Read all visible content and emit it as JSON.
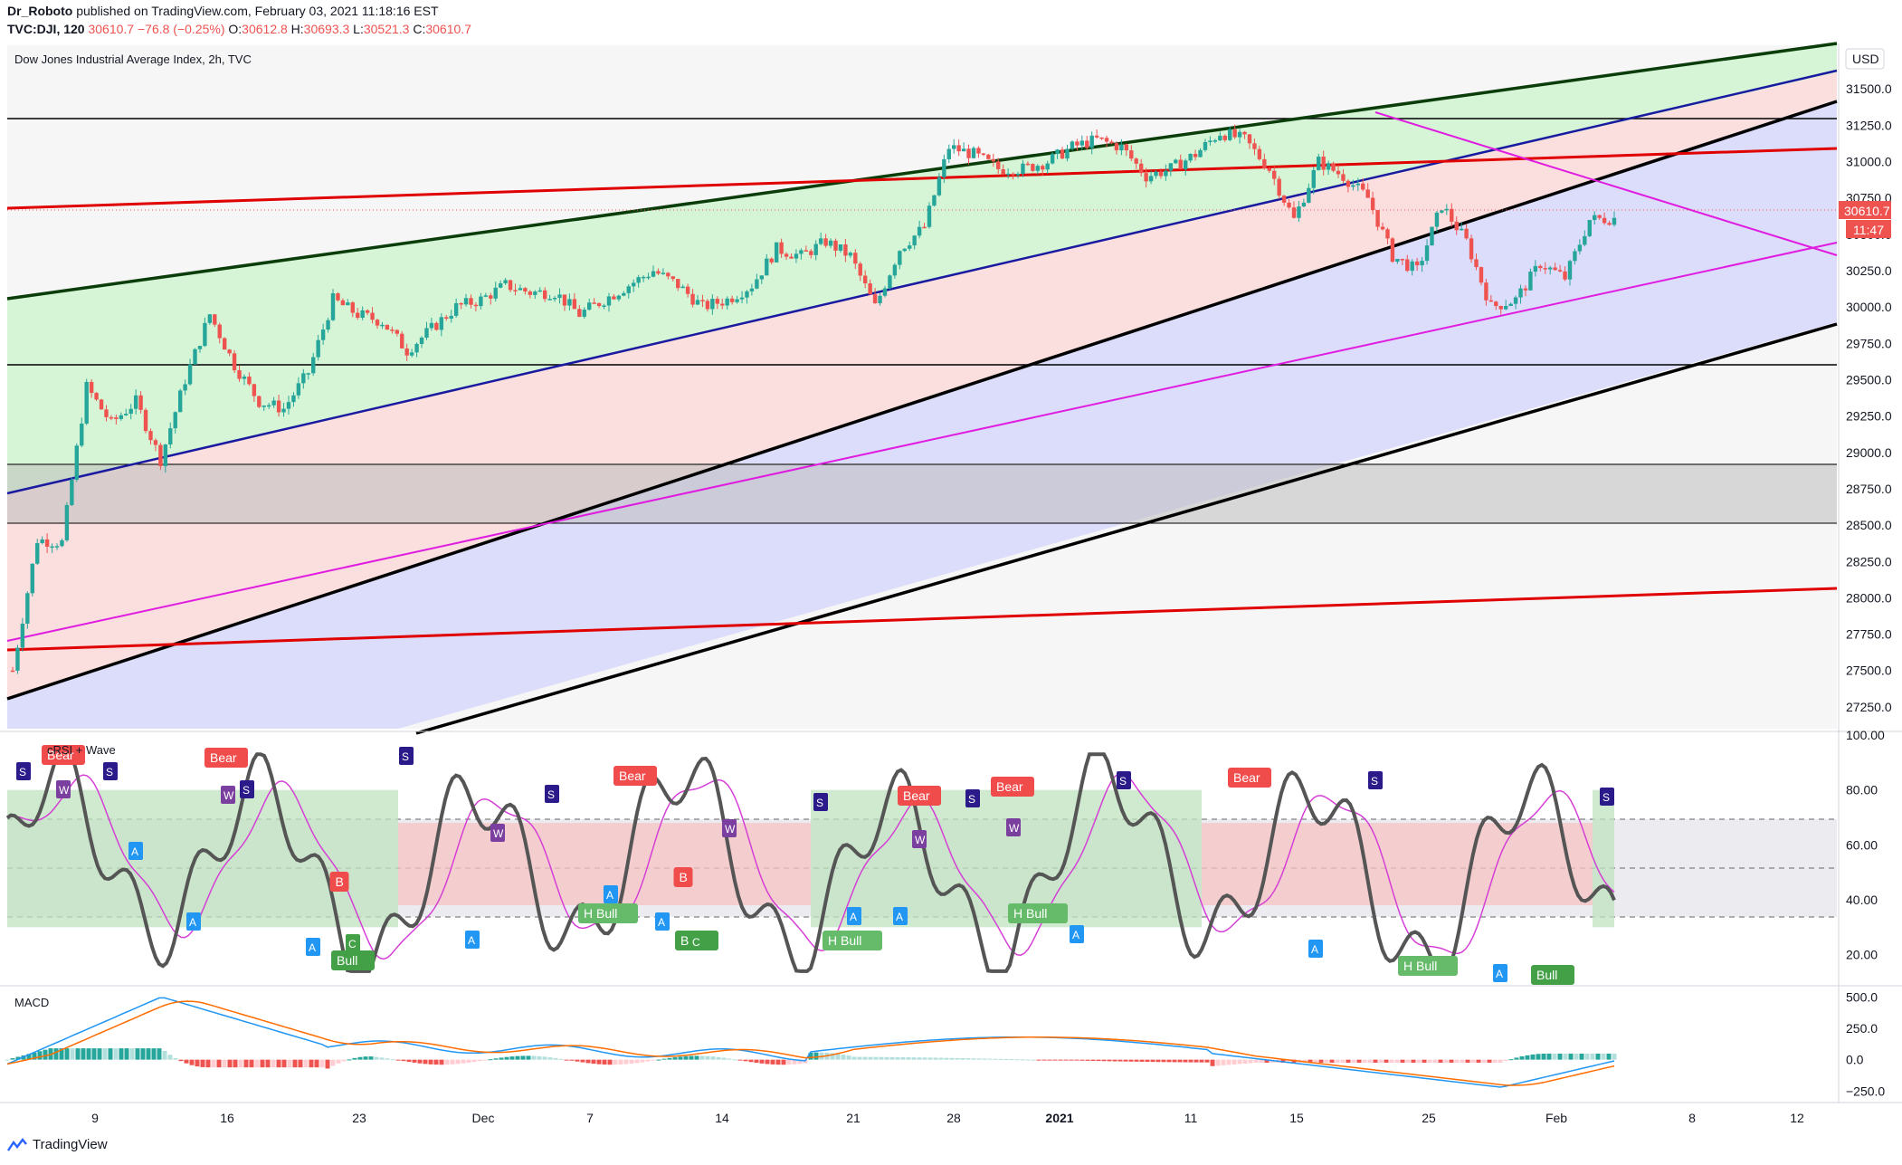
{
  "header": {
    "author": "Dr_Roboto",
    "published_text": "published on TradingView.com, February 03, 2021 11:18:16 EST",
    "symbol": "TVC:DJI, 120",
    "last": "30610.7",
    "change": "−76.8 (−0.25%)",
    "open_label": "O:",
    "open": "30612.8",
    "high_label": "H:",
    "high": "30693.3",
    "low_label": "L:",
    "low": "30521.3",
    "close_label": "C:",
    "close": "30610.7"
  },
  "footer": {
    "brand": "TradingView"
  },
  "colors": {
    "up": "#26a69a",
    "down": "#ef5350",
    "green_fill": "#d6f5d6",
    "red_fill": "#fbdede",
    "blue_fill": "#dcdcfb",
    "gray_fill": "#dcdcdc",
    "channel_green": "#0b3d0b",
    "channel_blue": "#1a1aa0",
    "channel_black": "#000000",
    "trend_red": "#e00000",
    "trend_magenta": "#e01ce0",
    "rsi_line": "#555555",
    "rsi_ma": "#d63fd6",
    "macd_line": "#2196f3",
    "signal_line": "#ff6d00"
  },
  "chart_data": [
    {
      "type": "candlestick",
      "title": "Dow Jones Industrial Average Index, 2h, TVC",
      "currency": "USD",
      "price_axis_ticks": [
        "31500.0",
        "31250.0",
        "31000.0",
        "30750.0",
        "30500.0",
        "30250.0",
        "30000.0",
        "29750.0",
        "29500.0",
        "29250.0",
        "29000.0",
        "28750.0",
        "28500.0",
        "28250.0",
        "28000.0",
        "27750.0",
        "27500.0",
        "27250.0"
      ],
      "ylim": [
        27100,
        31800
      ],
      "last_price_label": "30610.7",
      "countdown_label": "11:47",
      "time_axis_labels": [
        "9",
        "16",
        "23",
        "Dec",
        "7",
        "14",
        "21",
        "28",
        "2021",
        "11",
        "15",
        "25",
        "Feb",
        "8",
        "12"
      ],
      "horizontal_levels": [
        31230,
        29570,
        28900,
        28500
      ],
      "approx_close_path": [
        27500,
        28400,
        28380,
        29450,
        29200,
        29350,
        28950,
        29500,
        29950,
        29600,
        29350,
        29300,
        29550,
        30050,
        29950,
        29900,
        29700,
        29850,
        30000,
        30050,
        30150,
        30100,
        30100,
        29950,
        30050,
        30150,
        30250,
        30150,
        30000,
        30050,
        30150,
        30400,
        30350,
        30450,
        30350,
        30000,
        30400,
        30550,
        31100,
        31050,
        30950,
        30950,
        31000,
        31100,
        31150,
        31100,
        30900,
        30950,
        31050,
        31200,
        31150,
        30950,
        30600,
        31000,
        30900,
        30750,
        30350,
        30250,
        30700,
        30450,
        30000,
        30050,
        30300,
        30200,
        30600,
        30610.7
      ]
    },
    {
      "type": "line",
      "title": "cRSI + Wave",
      "axis_ticks": [
        "100.00",
        "80.00",
        "60.00",
        "40.00",
        "20.00"
      ],
      "ylim": [
        10,
        100
      ],
      "dashed_levels": [
        70,
        50,
        30
      ],
      "signal_labels": [
        "Bear",
        "Bear",
        "Bear",
        "Bear",
        "Bear",
        "Bear",
        "B",
        "B",
        "Bull",
        "Bull",
        "Bull",
        "H Bull",
        "H Bull",
        "H Bull",
        "H Bull",
        "S",
        "W",
        "A",
        "C"
      ]
    },
    {
      "type": "bar",
      "title": "MACD",
      "axis_ticks": [
        "500.0",
        "250.0",
        "0.0",
        "−250.0"
      ],
      "ylim": [
        -320,
        560
      ]
    }
  ]
}
